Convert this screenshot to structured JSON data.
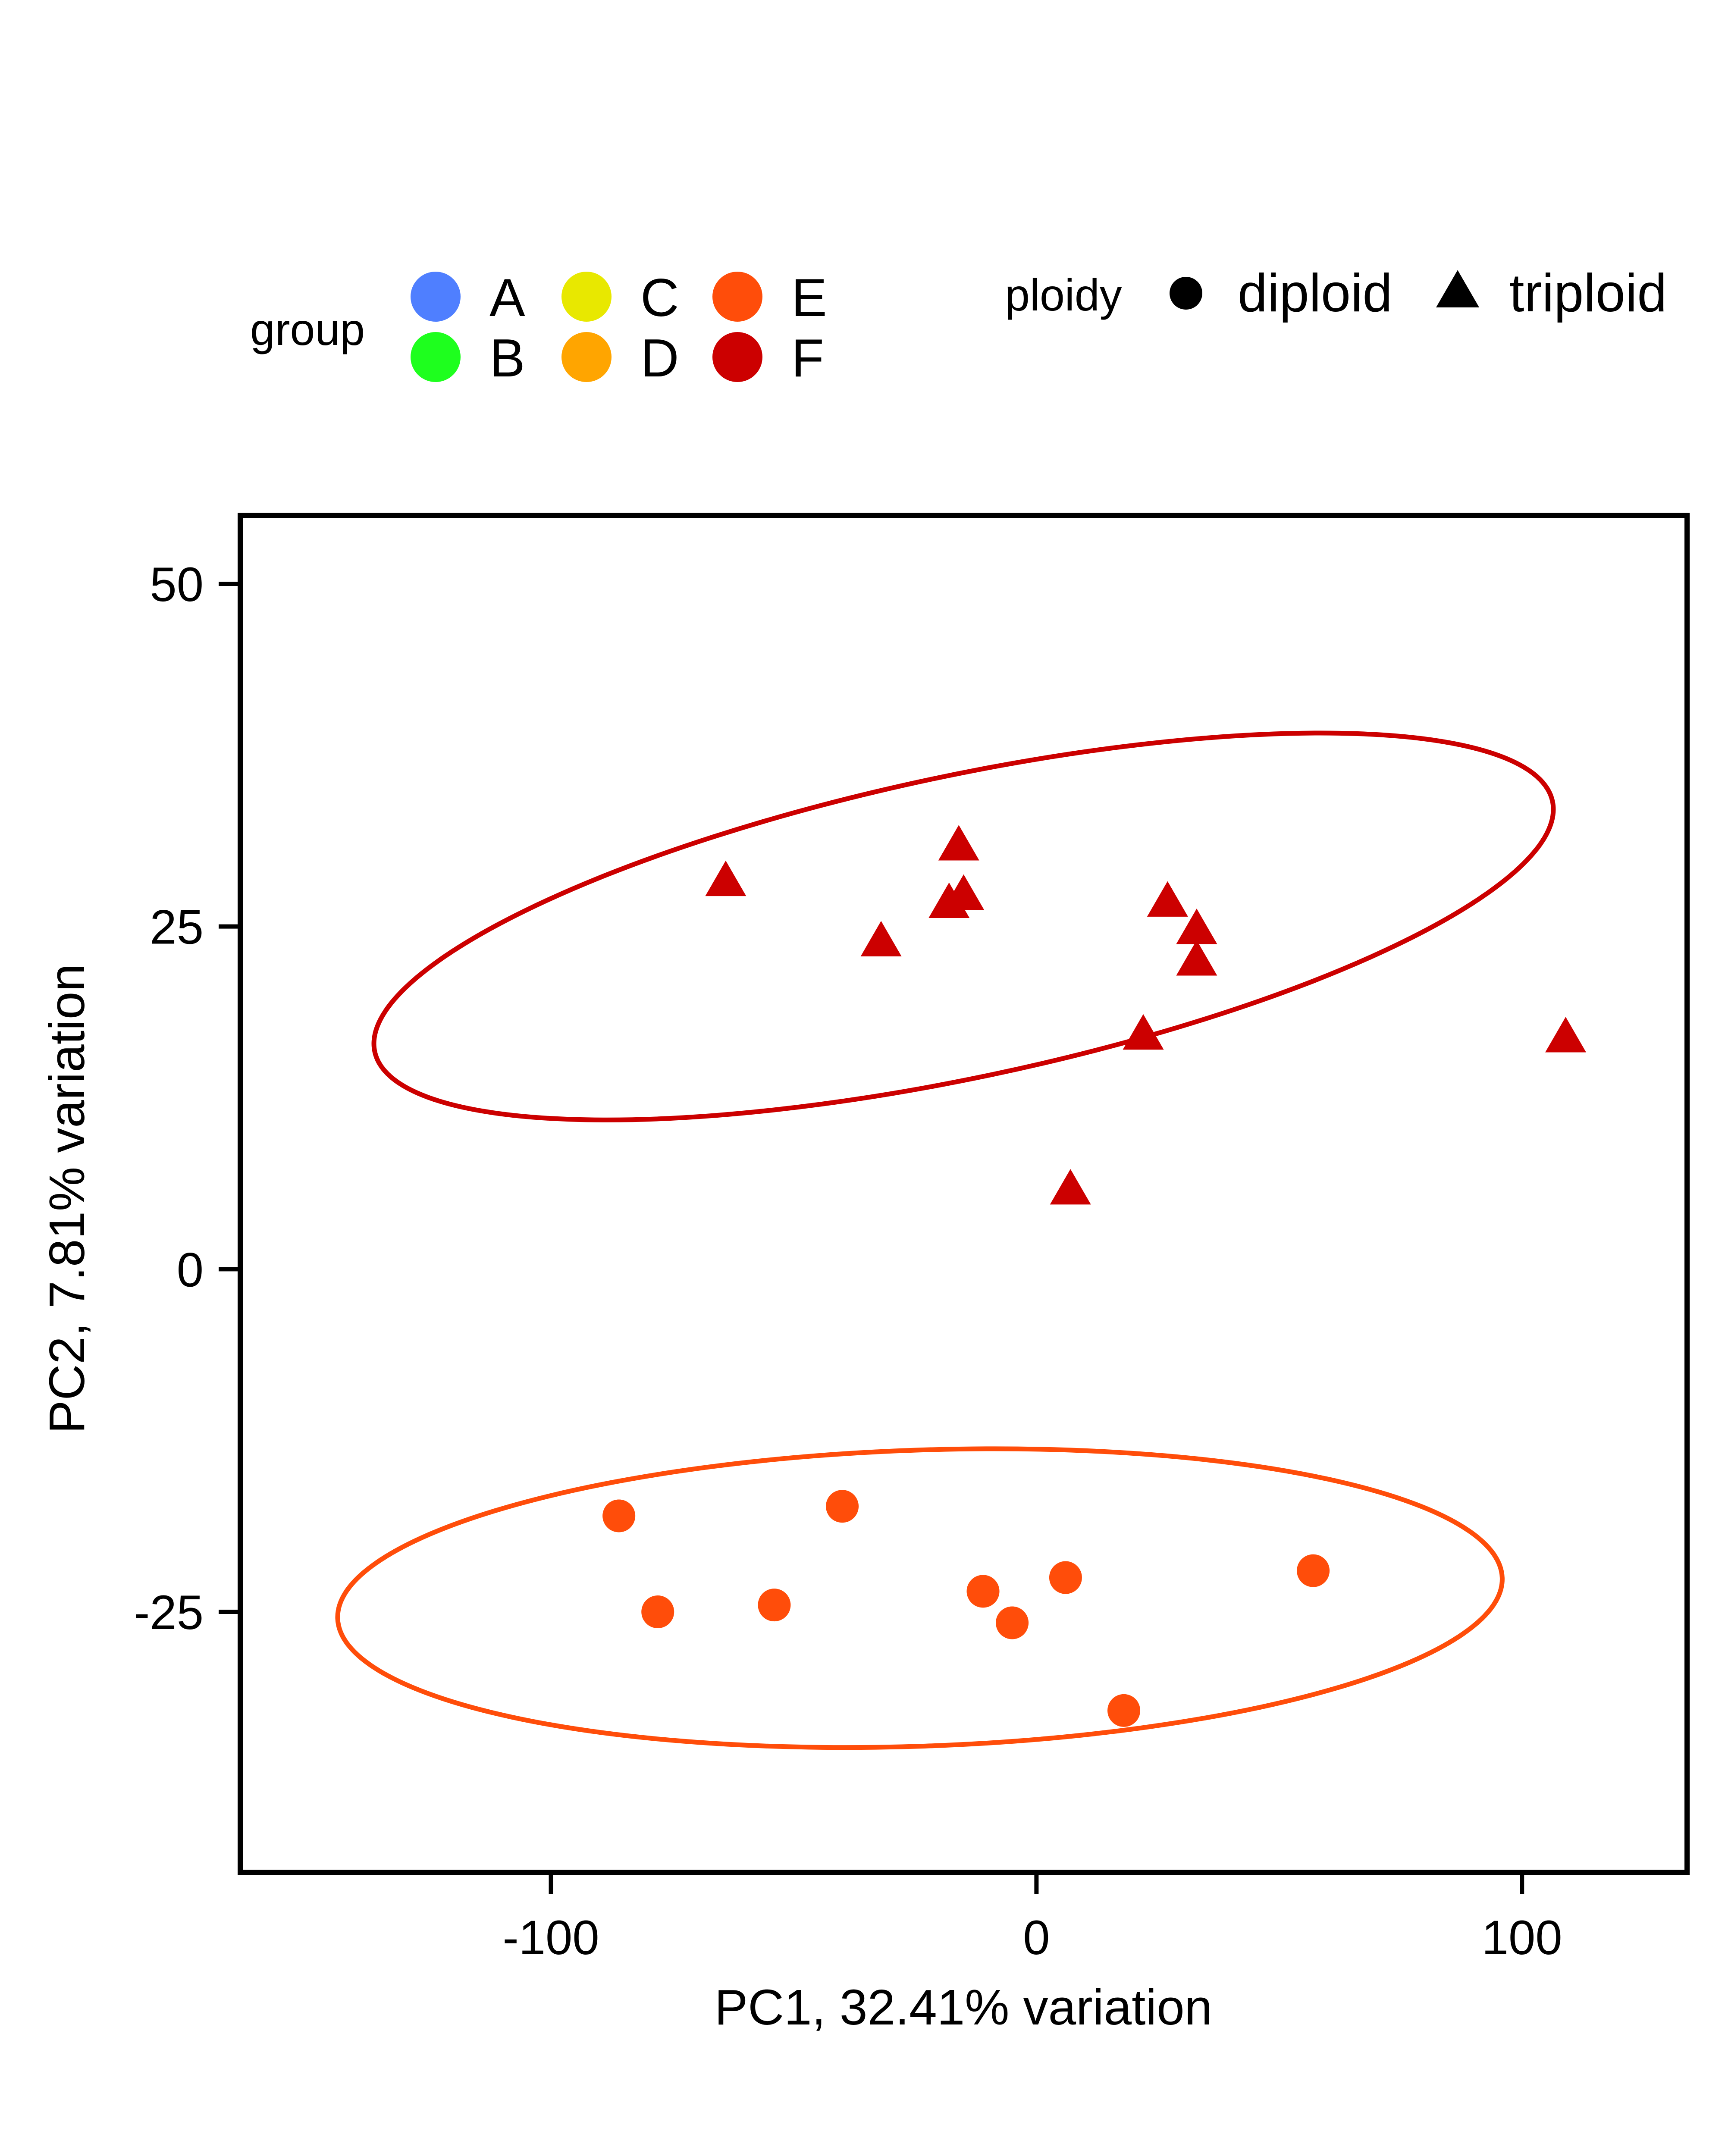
{
  "chart_data": {
    "type": "scatter",
    "title": "",
    "xlabel": "PC1, 32.41% variation",
    "ylabel": "PC2, 7.81% variation",
    "xlim": [
      -164,
      134
    ],
    "ylim": [
      -44,
      55
    ],
    "x_ticks": [
      {
        "value": -100,
        "label": "-100"
      },
      {
        "value": 0,
        "label": "0"
      },
      {
        "value": 100,
        "label": "100"
      }
    ],
    "y_ticks": [
      {
        "value": 50,
        "label": "50"
      },
      {
        "value": 25,
        "label": "25"
      },
      {
        "value": 0,
        "label": "0"
      },
      {
        "value": -25,
        "label": "-25"
      }
    ],
    "grid": false,
    "legend_placement": "top",
    "legends": {
      "group": {
        "title": "group",
        "items": [
          {
            "label": "A",
            "color": "#4F7FFF"
          },
          {
            "label": "B",
            "color": "#1EFF1E"
          },
          {
            "label": "C",
            "color": "#E8E800"
          },
          {
            "label": "D",
            "color": "#FFA500"
          },
          {
            "label": "E",
            "color": "#FF4D0A"
          },
          {
            "label": "F",
            "color": "#CC0000"
          }
        ]
      },
      "ploidy": {
        "title": "ploidy",
        "items": [
          {
            "label": "diploid",
            "shape": "circle"
          },
          {
            "label": "triploid",
            "shape": "triangle"
          }
        ]
      }
    },
    "series": [
      {
        "group": "E",
        "ploidy": "diploid",
        "color": "#FF4D0A",
        "points": [
          {
            "x": -86,
            "y": -18
          },
          {
            "x": -78,
            "y": -25
          },
          {
            "x": -54,
            "y": -24.5
          },
          {
            "x": -40,
            "y": -17.3
          },
          {
            "x": -11,
            "y": -23.5
          },
          {
            "x": -5,
            "y": -25.8
          },
          {
            "x": 6,
            "y": -22.5
          },
          {
            "x": 18,
            "y": -32.2
          },
          {
            "x": 57,
            "y": -22
          }
        ],
        "ellipse": {
          "cx": -24,
          "cy": -24,
          "rx": 120,
          "ry": 10.8,
          "angle_deg": -2
        }
      },
      {
        "group": "F",
        "ploidy": "triploid",
        "color": "#CC0000",
        "points": [
          {
            "x": -64,
            "y": 28.2
          },
          {
            "x": -32,
            "y": 23.8
          },
          {
            "x": -16,
            "y": 30.8
          },
          {
            "x": -15,
            "y": 27.2
          },
          {
            "x": -18,
            "y": 26.6
          },
          {
            "x": 27,
            "y": 26.7
          },
          {
            "x": 33,
            "y": 24.7
          },
          {
            "x": 33,
            "y": 22.4
          },
          {
            "x": 22,
            "y": 17
          },
          {
            "x": 7,
            "y": 5.7
          },
          {
            "x": 109,
            "y": 16.8
          }
        ],
        "ellipse": {
          "cx": -15,
          "cy": 25,
          "rx": 124,
          "ry": 11,
          "angle_deg": -12
        }
      }
    ]
  }
}
